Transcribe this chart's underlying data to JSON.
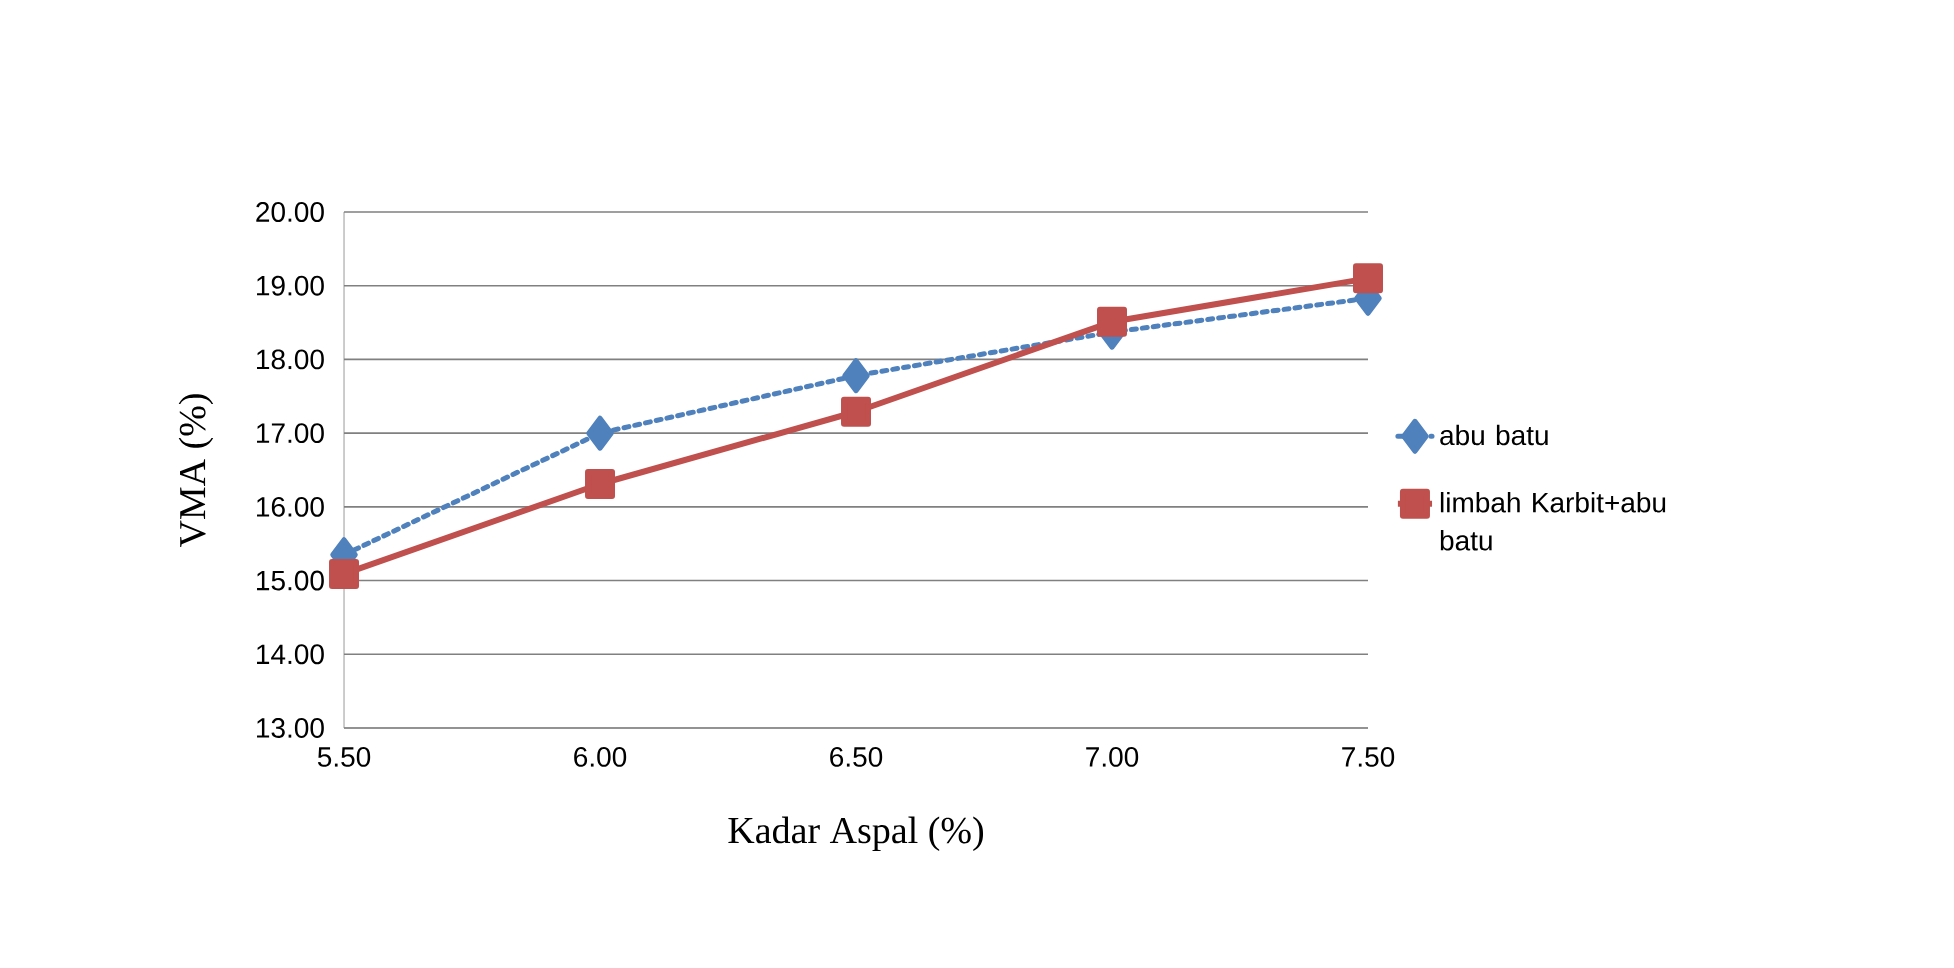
{
  "chart_data": {
    "type": "line",
    "xlabel": "Kadar Aspal (%)",
    "ylabel": "VMA (%)",
    "x": [
      5.5,
      6.0,
      6.5,
      7.0,
      7.5
    ],
    "series": [
      {
        "name": "abu batu",
        "color": "#4f81bd",
        "values": [
          15.35,
          17.0,
          17.78,
          18.37,
          18.83
        ],
        "marker": "diamond",
        "line_style": "dotted"
      },
      {
        "name": "limbah Karbit+abu batu",
        "color": "#c0504d",
        "values": [
          15.09,
          16.31,
          17.29,
          18.51,
          19.1
        ],
        "marker": "square",
        "line_style": "solid"
      }
    ],
    "xlim": [
      5.5,
      7.5
    ],
    "xticks": [
      {
        "value": 5.5,
        "label": "5.50"
      },
      {
        "value": 6.0,
        "label": "6.00"
      },
      {
        "value": 6.5,
        "label": "6.50"
      },
      {
        "value": 7.0,
        "label": "7.00"
      },
      {
        "value": 7.5,
        "label": "7.50"
      }
    ],
    "ylim": [
      13,
      20
    ],
    "yticks": [
      {
        "value": 13,
        "label": "13.00"
      },
      {
        "value": 14,
        "label": "14.00"
      },
      {
        "value": 15,
        "label": "15.00"
      },
      {
        "value": 16,
        "label": "16.00"
      },
      {
        "value": 17,
        "label": "17.00"
      },
      {
        "value": 18,
        "label": "18.00"
      },
      {
        "value": 19,
        "label": "19.00"
      },
      {
        "value": 20,
        "label": "20.00"
      }
    ],
    "grid": "y",
    "legend": "right"
  }
}
